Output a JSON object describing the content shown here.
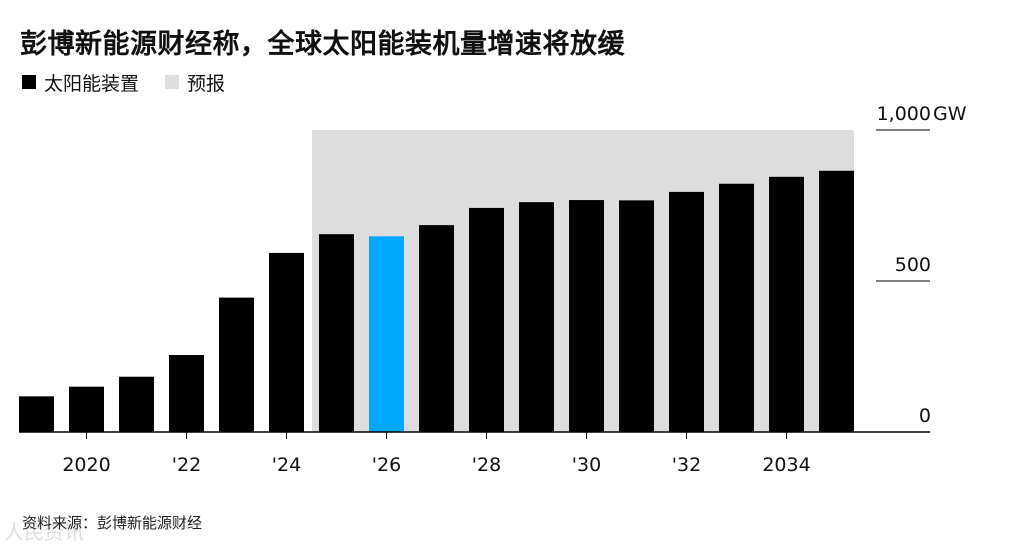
{
  "title": "彭博新能源财经称，全球太阳能装机量增速将放缓",
  "legend": [
    {
      "label": "太阳能装置",
      "color": "#000000"
    },
    {
      "label": "预报",
      "color": "#dddddd"
    }
  ],
  "source": "资料来源：彭博新能源财经",
  "watermark": "人民资讯",
  "chart_data": {
    "type": "bar",
    "categories": [
      "2019",
      "2020",
      "2021",
      "2022",
      "2023",
      "2024",
      "2025",
      "2026",
      "2027",
      "2028",
      "2029",
      "2030",
      "2031",
      "2032",
      "2033",
      "2034",
      "2035"
    ],
    "values": [
      118,
      150,
      183,
      255,
      445,
      593,
      655,
      648,
      685,
      742,
      761,
      768,
      767,
      795,
      822,
      845,
      865
    ],
    "highlight_category": "2026",
    "highlight_color": "#00a8ff",
    "bar_color": "#000000",
    "forecast_shade": {
      "from": "2025",
      "to": "2035",
      "top": 1000,
      "color": "#dddddd"
    },
    "x_tick_labels": [
      {
        "category": "2020",
        "label": "2020"
      },
      {
        "category": "2022",
        "label": "'22"
      },
      {
        "category": "2024",
        "label": "'24"
      },
      {
        "category": "2026",
        "label": "'26"
      },
      {
        "category": "2028",
        "label": "'28"
      },
      {
        "category": "2030",
        "label": "'30"
      },
      {
        "category": "2032",
        "label": "'32"
      },
      {
        "category": "2034",
        "label": "2034"
      }
    ],
    "y_ticks": [
      {
        "value": 0,
        "label": "0"
      },
      {
        "value": 500,
        "label": "500"
      },
      {
        "value": 1000,
        "label": "1,000"
      }
    ],
    "y_unit": "GW",
    "ylim": [
      0,
      1000
    ],
    "axis_position": "right",
    "grid": false
  }
}
